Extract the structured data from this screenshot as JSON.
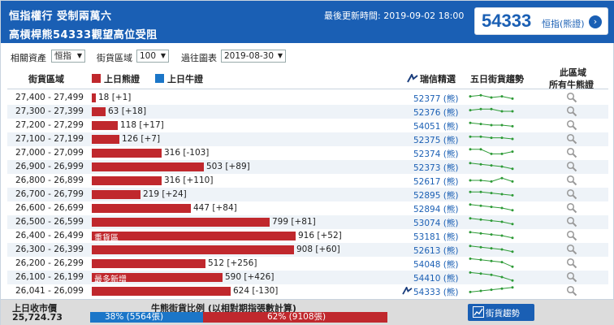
{
  "header": {
    "line1": "恒指權行 受制兩萬六",
    "line2": "高槓桿熊54333觀望高位受阻",
    "updated": "最後更新時間: 2019-09-02 18:00",
    "badge_code": "54333",
    "badge_label": "恒指(熊證)"
  },
  "filters": {
    "asset_label": "相關資產",
    "asset_value": "恒指",
    "range_label": "街貨區域",
    "range_value": "100",
    "date_label": "過往圖表",
    "date_value": "2019-08-30"
  },
  "table_header": {
    "range_col": "街貨區域",
    "bear_legend": "上日熊證",
    "bull_legend": "上日牛證",
    "pick_col": "瑞信精選",
    "trend_col": "五日街貨趨勢",
    "all_col_l1": "此區域",
    "all_col_l2": "所有牛熊證"
  },
  "colors": {
    "bear": "#c0282d",
    "bull": "#1b76c8",
    "brand": "#1a5fb4",
    "spark": "#2e9b37"
  },
  "rows": [
    {
      "range": "27,400 - 27,499",
      "value": 18,
      "label": "18 [+1]",
      "code": "52377 (熊)",
      "tag": "",
      "spark": [
        6,
        7,
        5,
        6,
        4
      ]
    },
    {
      "range": "27,300 - 27,399",
      "value": 63,
      "label": "63 [+18]",
      "code": "52376 (熊)",
      "tag": "",
      "spark": [
        6,
        7,
        7,
        5,
        5
      ]
    },
    {
      "range": "27,200 - 27,299",
      "value": 118,
      "label": "118 [+17]",
      "code": "54051 (熊)",
      "tag": "",
      "spark": [
        7,
        6,
        5,
        5,
        4
      ]
    },
    {
      "range": "27,100 - 27,199",
      "value": 126,
      "label": "126 [+7]",
      "code": "52375 (熊)",
      "tag": "",
      "spark": [
        7,
        7,
        6,
        6,
        5
      ]
    },
    {
      "range": "27,000 - 27,099",
      "value": 316,
      "label": "316 [-103]",
      "code": "52374 (熊)",
      "tag": "",
      "spark": [
        8,
        8,
        4,
        4,
        6
      ]
    },
    {
      "range": "26,900 - 26,999",
      "value": 503,
      "label": "503 [+89]",
      "code": "52373 (熊)",
      "tag": "",
      "spark": [
        8,
        7,
        6,
        5,
        3
      ]
    },
    {
      "range": "26,800 - 26,899",
      "value": 316,
      "label": "316 [+110]",
      "code": "52617 (熊)",
      "tag": "",
      "spark": [
        5,
        5,
        4,
        7,
        4
      ]
    },
    {
      "range": "26,700 - 26,799",
      "value": 219,
      "label": "219 [+24]",
      "code": "52895 (熊)",
      "tag": "",
      "spark": [
        7,
        7,
        6,
        5,
        4
      ]
    },
    {
      "range": "26,600 - 26,699",
      "value": 447,
      "label": "447 [+84]",
      "code": "52894 (熊)",
      "tag": "",
      "spark": [
        8,
        7,
        6,
        5,
        3
      ]
    },
    {
      "range": "26,500 - 26,599",
      "value": 799,
      "label": "799 [+81]",
      "code": "53074 (熊)",
      "tag": "",
      "spark": [
        8,
        7,
        6,
        5,
        3
      ]
    },
    {
      "range": "26,400 - 26,499",
      "value": 916,
      "label": "916 [+52]",
      "code": "53181 (熊)",
      "tag": "重貨區",
      "spark": [
        8,
        7,
        6,
        5,
        3
      ]
    },
    {
      "range": "26,300 - 26,399",
      "value": 908,
      "label": "908 [+60]",
      "code": "52613 (熊)",
      "tag": "",
      "spark": [
        8,
        7,
        6,
        5,
        3
      ]
    },
    {
      "range": "26,200 - 26,299",
      "value": 512,
      "label": "512 [+256]",
      "code": "54048 (熊)",
      "tag": "",
      "spark": [
        9,
        8,
        7,
        6,
        2
      ]
    },
    {
      "range": "26,100 - 26,199",
      "value": 590,
      "label": "590 [+426]",
      "code": "54410 (熊)",
      "tag": "最多新增",
      "spark": [
        9,
        8,
        7,
        5,
        2
      ]
    },
    {
      "range": "26,041 - 26,099",
      "value": 624,
      "label": "624 [-130]",
      "code": "54333 (熊)",
      "tag": "",
      "spark": [
        4,
        5,
        6,
        7,
        8
      ],
      "special": true
    }
  ],
  "footer": {
    "close_label": "上日收市價",
    "close_value": "25,724.73",
    "ratio_title": "牛熊街貨比例 (以相對期指張數計算)",
    "bull_pct": 38,
    "bull_text": "38% (5564張)",
    "bear_text": "62% (9108張)",
    "button_label": "街貨趨勢"
  }
}
